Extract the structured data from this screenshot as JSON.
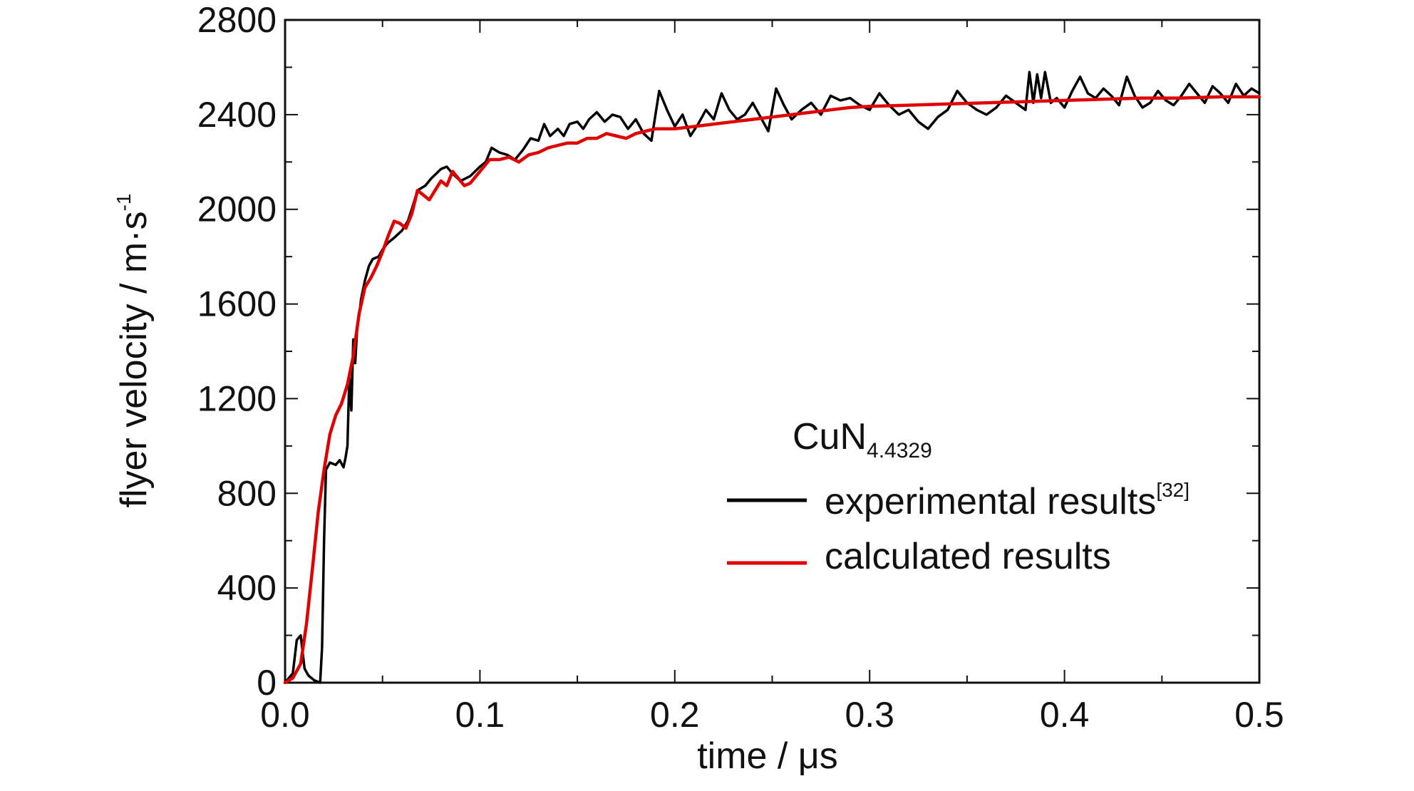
{
  "chart_data": {
    "type": "line",
    "xlabel": "time / μs",
    "ylabel_main": "flyer velocity / m·s",
    "ylabel_sup": "-1",
    "xlim": [
      0.0,
      0.5
    ],
    "ylim": [
      0,
      2800
    ],
    "x_ticks": [
      0.0,
      0.1,
      0.2,
      0.3,
      0.4,
      0.5
    ],
    "x_tick_labels": [
      "0.0",
      "0.1",
      "0.2",
      "0.3",
      "0.4",
      "0.5"
    ],
    "y_ticks": [
      0,
      400,
      800,
      1200,
      1600,
      2000,
      2400,
      2800
    ],
    "y_tick_labels": [
      "0",
      "400",
      "800",
      "1200",
      "1600",
      "2000",
      "2400",
      "2800"
    ],
    "grid": false,
    "legend": {
      "placement": "right-center",
      "title_main": "CuN",
      "title_sub": "4.4329"
    },
    "series": [
      {
        "name": "experimental results",
        "name_sup": "[32]",
        "color": "#000000",
        "points": [
          [
            0.0,
            0
          ],
          [
            0.004,
            40
          ],
          [
            0.006,
            180
          ],
          [
            0.008,
            200
          ],
          [
            0.01,
            60
          ],
          [
            0.012,
            30
          ],
          [
            0.015,
            10
          ],
          [
            0.018,
            0
          ],
          [
            0.019,
            150
          ],
          [
            0.02,
            600
          ],
          [
            0.021,
            900
          ],
          [
            0.023,
            930
          ],
          [
            0.026,
            920
          ],
          [
            0.028,
            940
          ],
          [
            0.03,
            910
          ],
          [
            0.031,
            950
          ],
          [
            0.032,
            1000
          ],
          [
            0.033,
            1300
          ],
          [
            0.034,
            1150
          ],
          [
            0.035,
            1450
          ],
          [
            0.036,
            1350
          ],
          [
            0.037,
            1500
          ],
          [
            0.038,
            1550
          ],
          [
            0.039,
            1620
          ],
          [
            0.041,
            1700
          ],
          [
            0.043,
            1760
          ],
          [
            0.045,
            1790
          ],
          [
            0.048,
            1800
          ],
          [
            0.05,
            1830
          ],
          [
            0.053,
            1860
          ],
          [
            0.056,
            1880
          ],
          [
            0.06,
            1910
          ],
          [
            0.063,
            1950
          ],
          [
            0.065,
            2000
          ],
          [
            0.068,
            2080
          ],
          [
            0.072,
            2100
          ],
          [
            0.075,
            2130
          ],
          [
            0.08,
            2170
          ],
          [
            0.083,
            2180
          ],
          [
            0.086,
            2150
          ],
          [
            0.09,
            2120
          ],
          [
            0.095,
            2140
          ],
          [
            0.1,
            2180
          ],
          [
            0.103,
            2200
          ],
          [
            0.106,
            2260
          ],
          [
            0.11,
            2240
          ],
          [
            0.114,
            2230
          ],
          [
            0.118,
            2210
          ],
          [
            0.122,
            2250
          ],
          [
            0.126,
            2300
          ],
          [
            0.13,
            2290
          ],
          [
            0.133,
            2360
          ],
          [
            0.136,
            2310
          ],
          [
            0.14,
            2340
          ],
          [
            0.143,
            2310
          ],
          [
            0.146,
            2360
          ],
          [
            0.15,
            2370
          ],
          [
            0.153,
            2340
          ],
          [
            0.156,
            2380
          ],
          [
            0.16,
            2410
          ],
          [
            0.164,
            2370
          ],
          [
            0.168,
            2400
          ],
          [
            0.172,
            2390
          ],
          [
            0.176,
            2340
          ],
          [
            0.18,
            2380
          ],
          [
            0.184,
            2320
          ],
          [
            0.188,
            2290
          ],
          [
            0.192,
            2500
          ],
          [
            0.196,
            2420
          ],
          [
            0.2,
            2350
          ],
          [
            0.204,
            2400
          ],
          [
            0.208,
            2310
          ],
          [
            0.212,
            2360
          ],
          [
            0.216,
            2420
          ],
          [
            0.22,
            2380
          ],
          [
            0.224,
            2490
          ],
          [
            0.228,
            2420
          ],
          [
            0.232,
            2380
          ],
          [
            0.236,
            2400
          ],
          [
            0.24,
            2450
          ],
          [
            0.244,
            2390
          ],
          [
            0.248,
            2330
          ],
          [
            0.252,
            2510
          ],
          [
            0.256,
            2440
          ],
          [
            0.26,
            2380
          ],
          [
            0.265,
            2420
          ],
          [
            0.27,
            2450
          ],
          [
            0.275,
            2400
          ],
          [
            0.28,
            2480
          ],
          [
            0.285,
            2460
          ],
          [
            0.29,
            2470
          ],
          [
            0.295,
            2440
          ],
          [
            0.3,
            2420
          ],
          [
            0.305,
            2490
          ],
          [
            0.31,
            2440
          ],
          [
            0.315,
            2400
          ],
          [
            0.32,
            2420
          ],
          [
            0.325,
            2370
          ],
          [
            0.33,
            2340
          ],
          [
            0.335,
            2390
          ],
          [
            0.34,
            2420
          ],
          [
            0.345,
            2500
          ],
          [
            0.35,
            2450
          ],
          [
            0.355,
            2420
          ],
          [
            0.36,
            2400
          ],
          [
            0.365,
            2430
          ],
          [
            0.37,
            2480
          ],
          [
            0.375,
            2450
          ],
          [
            0.38,
            2420
          ],
          [
            0.382,
            2580
          ],
          [
            0.384,
            2450
          ],
          [
            0.386,
            2570
          ],
          [
            0.388,
            2470
          ],
          [
            0.39,
            2580
          ],
          [
            0.393,
            2450
          ],
          [
            0.396,
            2470
          ],
          [
            0.4,
            2430
          ],
          [
            0.404,
            2500
          ],
          [
            0.408,
            2560
          ],
          [
            0.412,
            2490
          ],
          [
            0.416,
            2470
          ],
          [
            0.42,
            2510
          ],
          [
            0.424,
            2480
          ],
          [
            0.428,
            2440
          ],
          [
            0.432,
            2560
          ],
          [
            0.436,
            2480
          ],
          [
            0.44,
            2430
          ],
          [
            0.444,
            2450
          ],
          [
            0.448,
            2500
          ],
          [
            0.452,
            2460
          ],
          [
            0.456,
            2440
          ],
          [
            0.46,
            2480
          ],
          [
            0.464,
            2530
          ],
          [
            0.468,
            2490
          ],
          [
            0.472,
            2450
          ],
          [
            0.476,
            2520
          ],
          [
            0.48,
            2490
          ],
          [
            0.484,
            2450
          ],
          [
            0.488,
            2530
          ],
          [
            0.492,
            2480
          ],
          [
            0.496,
            2510
          ],
          [
            0.5,
            2490
          ]
        ]
      },
      {
        "name": "calculated results",
        "color": "#e00000",
        "points": [
          [
            0.0,
            0
          ],
          [
            0.004,
            20
          ],
          [
            0.008,
            80
          ],
          [
            0.011,
            250
          ],
          [
            0.014,
            480
          ],
          [
            0.017,
            720
          ],
          [
            0.02,
            900
          ],
          [
            0.023,
            1050
          ],
          [
            0.026,
            1130
          ],
          [
            0.029,
            1180
          ],
          [
            0.032,
            1260
          ],
          [
            0.035,
            1380
          ],
          [
            0.038,
            1560
          ],
          [
            0.041,
            1670
          ],
          [
            0.044,
            1710
          ],
          [
            0.047,
            1760
          ],
          [
            0.05,
            1820
          ],
          [
            0.053,
            1890
          ],
          [
            0.056,
            1950
          ],
          [
            0.059,
            1940
          ],
          [
            0.062,
            1920
          ],
          [
            0.065,
            1980
          ],
          [
            0.068,
            2080
          ],
          [
            0.071,
            2060
          ],
          [
            0.074,
            2040
          ],
          [
            0.077,
            2080
          ],
          [
            0.08,
            2120
          ],
          [
            0.083,
            2100
          ],
          [
            0.086,
            2160
          ],
          [
            0.089,
            2130
          ],
          [
            0.092,
            2100
          ],
          [
            0.095,
            2110
          ],
          [
            0.1,
            2160
          ],
          [
            0.105,
            2210
          ],
          [
            0.11,
            2210
          ],
          [
            0.115,
            2220
          ],
          [
            0.12,
            2200
          ],
          [
            0.125,
            2230
          ],
          [
            0.13,
            2240
          ],
          [
            0.135,
            2260
          ],
          [
            0.14,
            2270
          ],
          [
            0.145,
            2280
          ],
          [
            0.15,
            2280
          ],
          [
            0.155,
            2300
          ],
          [
            0.16,
            2300
          ],
          [
            0.165,
            2320
          ],
          [
            0.17,
            2310
          ],
          [
            0.175,
            2300
          ],
          [
            0.18,
            2320
          ],
          [
            0.185,
            2330
          ],
          [
            0.19,
            2340
          ],
          [
            0.2,
            2340
          ],
          [
            0.21,
            2350
          ],
          [
            0.22,
            2360
          ],
          [
            0.23,
            2370
          ],
          [
            0.24,
            2380
          ],
          [
            0.25,
            2390
          ],
          [
            0.26,
            2400
          ],
          [
            0.27,
            2410
          ],
          [
            0.28,
            2420
          ],
          [
            0.29,
            2430
          ],
          [
            0.3,
            2435
          ],
          [
            0.32,
            2440
          ],
          [
            0.34,
            2445
          ],
          [
            0.36,
            2450
          ],
          [
            0.38,
            2455
          ],
          [
            0.4,
            2460
          ],
          [
            0.42,
            2465
          ],
          [
            0.44,
            2470
          ],
          [
            0.46,
            2470
          ],
          [
            0.48,
            2475
          ],
          [
            0.5,
            2475
          ]
        ]
      }
    ]
  }
}
